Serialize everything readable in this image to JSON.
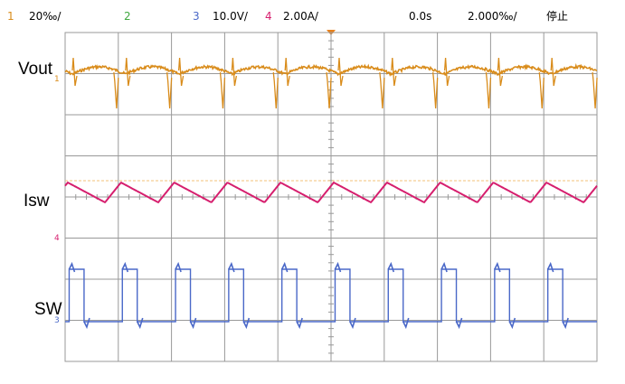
{
  "colors": {
    "ch1": "#d98c1b",
    "ch2": "#3fa83f",
    "ch3": "#4a68c8",
    "ch4": "#d61f6e",
    "grid": "#999999",
    "dashed": "#f3c27a"
  },
  "header": {
    "ch1_num": "1",
    "ch1_scale": "20‰/",
    "ch2_num": "2",
    "ch3_num": "3",
    "ch3_scale": "10.0V/",
    "ch4_num": "4",
    "ch4_scale": "2.00A/",
    "time_offset": "0.0s",
    "time_scale": "2.000‰/",
    "run_state": "停止"
  },
  "markers": {
    "ch1": "1",
    "ch4": "4",
    "ch3": "3"
  },
  "chart_data": {
    "type": "line",
    "grid": {
      "divisions_x": 10,
      "divisions_y": 8
    },
    "cycles_shown": 10,
    "series": [
      {
        "name": "Vout",
        "channel": 1,
        "waveform": "ripple with switching spikes"
      },
      {
        "name": "Isw",
        "channel": 4,
        "waveform": "triangular inductor current"
      },
      {
        "name": "SW",
        "channel": 3,
        "waveform": "square switching node"
      }
    ]
  }
}
